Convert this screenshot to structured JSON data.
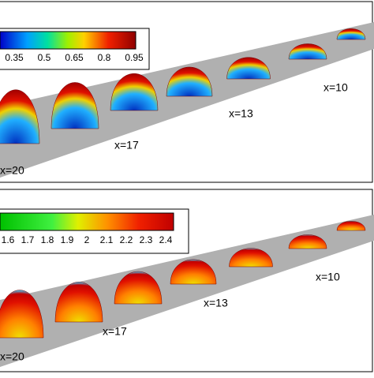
{
  "panels": [
    {
      "colorbar": {
        "ticks": [
          "0.35",
          "0.5",
          "0.65",
          "0.8",
          "0.95"
        ]
      },
      "labels": [
        "x=10",
        "x=13",
        "x=17",
        "x=20"
      ]
    },
    {
      "colorbar": {
        "ticks": [
          "1.6",
          "1.7",
          "1.8",
          "1.9",
          "2",
          "2.1",
          "2.2",
          "2.3",
          "2.4"
        ]
      },
      "labels": [
        "x=10",
        "x=13",
        "x=17",
        "x=20"
      ]
    }
  ]
}
